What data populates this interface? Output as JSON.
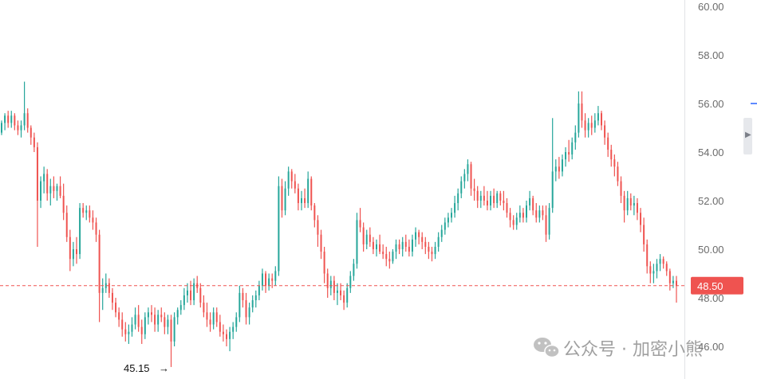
{
  "chart_data": {
    "type": "candlestick",
    "title": "",
    "xlabel": "",
    "ylabel": "",
    "ylim": [
      45.0,
      60.4
    ],
    "yticks": [
      "60.00",
      "58.00",
      "56.00",
      "54.00",
      "52.00",
      "50.00",
      "48.00",
      "46.00"
    ],
    "y_axis_side": "right",
    "grid": false,
    "up_color": "#26a69a",
    "down_color": "#ef5350",
    "current_price": {
      "value": 48.5,
      "label": "48.50",
      "color": "#ef5350"
    },
    "low_marker": {
      "value": 45.15,
      "label": "45.15",
      "arrow": "→"
    },
    "candles": [
      [
        54.8,
        55.3,
        54.7,
        55.2
      ],
      [
        55.2,
        55.6,
        54.9,
        55.5
      ],
      [
        55.5,
        55.7,
        55.0,
        55.2
      ],
      [
        55.2,
        55.7,
        55.0,
        55.5
      ],
      [
        55.5,
        55.6,
        54.9,
        55.1
      ],
      [
        55.1,
        55.3,
        54.7,
        54.9
      ],
      [
        54.9,
        55.3,
        54.6,
        55.1
      ],
      [
        55.1,
        56.9,
        54.9,
        55.6
      ],
      [
        55.6,
        55.8,
        54.8,
        55.0
      ],
      [
        55.0,
        55.1,
        54.3,
        54.6
      ],
      [
        54.6,
        54.8,
        54.0,
        54.2
      ],
      [
        54.2,
        54.4,
        50.1,
        52.0
      ],
      [
        52.0,
        53.0,
        51.7,
        52.8
      ],
      [
        52.8,
        53.4,
        52.3,
        53.1
      ],
      [
        53.1,
        53.3,
        52.0,
        52.3
      ],
      [
        52.3,
        52.9,
        51.8,
        52.6
      ],
      [
        52.6,
        53.0,
        52.1,
        52.4
      ],
      [
        52.4,
        52.7,
        52.0,
        52.6
      ],
      [
        52.6,
        53.0,
        52.1,
        52.2
      ],
      [
        52.2,
        52.7,
        51.2,
        51.5
      ],
      [
        51.5,
        51.8,
        50.3,
        50.5
      ],
      [
        50.5,
        50.8,
        49.1,
        49.6
      ],
      [
        49.6,
        50.3,
        49.3,
        50.0
      ],
      [
        50.0,
        50.5,
        49.4,
        49.8
      ],
      [
        49.8,
        51.9,
        49.6,
        51.7
      ],
      [
        51.7,
        51.9,
        51.3,
        51.5
      ],
      [
        51.5,
        51.8,
        51.2,
        51.6
      ],
      [
        51.6,
        51.8,
        51.1,
        51.3
      ],
      [
        51.3,
        51.6,
        50.8,
        51.1
      ],
      [
        51.1,
        51.3,
        50.3,
        50.6
      ],
      [
        50.6,
        50.8,
        47.0,
        48.2
      ],
      [
        48.2,
        48.8,
        47.5,
        48.4
      ],
      [
        48.4,
        49.0,
        48.2,
        48.6
      ],
      [
        48.6,
        48.8,
        48.0,
        48.2
      ],
      [
        48.2,
        48.4,
        47.5,
        47.8
      ],
      [
        47.8,
        48.0,
        47.2,
        47.4
      ],
      [
        47.4,
        47.6,
        46.8,
        47.1
      ],
      [
        47.1,
        47.4,
        46.4,
        46.7
      ],
      [
        46.7,
        47.0,
        46.2,
        46.5
      ],
      [
        46.5,
        46.9,
        46.1,
        46.6
      ],
      [
        46.6,
        47.2,
        46.4,
        46.9
      ],
      [
        46.9,
        47.6,
        46.7,
        47.3
      ],
      [
        47.3,
        47.7,
        46.6,
        46.8
      ],
      [
        46.8,
        47.1,
        46.1,
        46.5
      ],
      [
        46.5,
        47.4,
        46.3,
        47.2
      ],
      [
        47.2,
        47.6,
        46.9,
        47.4
      ],
      [
        47.4,
        47.7,
        47.0,
        47.3
      ],
      [
        47.3,
        47.6,
        46.6,
        46.9
      ],
      [
        46.9,
        47.5,
        46.6,
        47.3
      ],
      [
        47.3,
        47.6,
        47.0,
        47.2
      ],
      [
        47.2,
        47.4,
        46.5,
        46.8
      ],
      [
        46.8,
        47.3,
        46.5,
        47.1
      ],
      [
        47.1,
        47.3,
        45.15,
        46.2
      ],
      [
        46.2,
        47.4,
        46.0,
        47.2
      ],
      [
        47.2,
        47.6,
        46.9,
        47.5
      ],
      [
        47.5,
        47.9,
        47.3,
        47.7
      ],
      [
        47.7,
        48.4,
        47.5,
        48.1
      ],
      [
        48.1,
        48.6,
        47.8,
        48.3
      ],
      [
        48.3,
        48.7,
        47.7,
        47.9
      ],
      [
        47.9,
        48.8,
        47.7,
        48.6
      ],
      [
        48.6,
        48.9,
        48.2,
        48.4
      ],
      [
        48.4,
        48.6,
        47.6,
        47.8
      ],
      [
        47.8,
        48.1,
        47.2,
        47.4
      ],
      [
        47.4,
        47.8,
        46.8,
        47.1
      ],
      [
        47.1,
        47.4,
        46.6,
        46.9
      ],
      [
        46.9,
        47.6,
        46.7,
        47.4
      ],
      [
        47.4,
        47.6,
        46.8,
        47.0
      ],
      [
        47.0,
        47.3,
        46.4,
        46.6
      ],
      [
        46.6,
        46.9,
        46.2,
        46.5
      ],
      [
        46.5,
        46.7,
        46.0,
        46.3
      ],
      [
        46.3,
        46.8,
        45.8,
        46.6
      ],
      [
        46.6,
        47.0,
        46.3,
        46.8
      ],
      [
        46.8,
        47.4,
        46.6,
        47.2
      ],
      [
        47.2,
        48.5,
        47.0,
        48.2
      ],
      [
        48.2,
        48.4,
        47.6,
        47.9
      ],
      [
        47.9,
        48.2,
        46.9,
        47.2
      ],
      [
        47.2,
        47.8,
        46.9,
        47.6
      ],
      [
        47.6,
        48.1,
        47.4,
        47.9
      ],
      [
        47.9,
        48.3,
        47.6,
        48.1
      ],
      [
        48.1,
        48.7,
        47.9,
        48.5
      ],
      [
        48.5,
        49.2,
        48.3,
        49.0
      ],
      [
        49.0,
        49.1,
        48.2,
        48.5
      ],
      [
        48.5,
        49.0,
        48.3,
        48.8
      ],
      [
        48.8,
        49.0,
        48.4,
        48.7
      ],
      [
        48.7,
        49.3,
        48.5,
        49.1
      ],
      [
        49.1,
        53.0,
        48.9,
        52.6
      ],
      [
        52.6,
        52.9,
        51.3,
        51.6
      ],
      [
        51.6,
        52.8,
        51.4,
        52.5
      ],
      [
        52.5,
        53.4,
        52.2,
        53.2
      ],
      [
        53.2,
        53.3,
        52.5,
        52.8
      ],
      [
        52.8,
        53.1,
        52.3,
        52.5
      ],
      [
        52.5,
        52.7,
        51.6,
        51.9
      ],
      [
        51.9,
        52.4,
        51.6,
        52.1
      ],
      [
        52.1,
        52.5,
        51.7,
        51.9
      ],
      [
        51.9,
        53.2,
        51.7,
        52.9
      ],
      [
        52.9,
        53.0,
        51.6,
        51.8
      ],
      [
        51.8,
        51.9,
        50.9,
        51.2
      ],
      [
        51.2,
        51.4,
        50.1,
        50.6
      ],
      [
        50.6,
        50.8,
        49.6,
        49.9
      ],
      [
        49.9,
        50.1,
        48.6,
        49.0
      ],
      [
        49.0,
        49.2,
        48.0,
        48.4
      ],
      [
        48.4,
        48.9,
        48.1,
        48.7
      ],
      [
        48.7,
        48.9,
        47.9,
        48.2
      ],
      [
        48.2,
        48.6,
        47.7,
        48.3
      ],
      [
        48.3,
        48.6,
        47.9,
        48.1
      ],
      [
        48.1,
        48.3,
        47.5,
        47.8
      ],
      [
        47.8,
        48.6,
        47.6,
        48.4
      ],
      [
        48.4,
        49.1,
        48.2,
        48.9
      ],
      [
        48.9,
        49.6,
        48.7,
        49.4
      ],
      [
        49.4,
        51.5,
        49.2,
        51.2
      ],
      [
        51.2,
        51.7,
        50.7,
        50.9
      ],
      [
        50.9,
        51.1,
        49.9,
        50.2
      ],
      [
        50.2,
        50.8,
        50.0,
        50.6
      ],
      [
        50.6,
        50.9,
        50.1,
        50.3
      ],
      [
        50.3,
        50.5,
        49.8,
        50.0
      ],
      [
        50.0,
        50.4,
        49.7,
        50.2
      ],
      [
        50.2,
        50.6,
        49.8,
        49.9
      ],
      [
        49.9,
        50.2,
        49.6,
        49.8
      ],
      [
        49.8,
        50.1,
        49.3,
        49.6
      ],
      [
        49.6,
        49.9,
        49.2,
        49.5
      ],
      [
        49.5,
        50.0,
        49.4,
        49.9
      ],
      [
        49.9,
        50.4,
        49.6,
        50.2
      ],
      [
        50.2,
        50.4,
        49.8,
        50.0
      ],
      [
        50.0,
        50.5,
        49.7,
        50.3
      ],
      [
        50.3,
        50.6,
        49.9,
        50.1
      ],
      [
        50.1,
        50.4,
        49.7,
        49.9
      ],
      [
        49.9,
        50.6,
        49.7,
        50.4
      ],
      [
        50.4,
        50.9,
        50.1,
        50.7
      ],
      [
        50.7,
        50.8,
        50.2,
        50.5
      ],
      [
        50.5,
        50.7,
        50.0,
        50.3
      ],
      [
        50.3,
        50.5,
        49.8,
        50.1
      ],
      [
        50.1,
        50.3,
        49.6,
        49.9
      ],
      [
        49.9,
        50.1,
        49.5,
        49.8
      ],
      [
        49.8,
        50.3,
        49.6,
        50.1
      ],
      [
        50.1,
        50.7,
        49.9,
        50.5
      ],
      [
        50.5,
        51.0,
        50.3,
        50.8
      ],
      [
        50.8,
        51.3,
        50.6,
        51.1
      ],
      [
        51.1,
        51.5,
        50.9,
        51.3
      ],
      [
        51.3,
        51.7,
        51.1,
        51.5
      ],
      [
        51.5,
        52.2,
        51.3,
        51.9
      ],
      [
        51.9,
        52.5,
        51.6,
        52.3
      ],
      [
        52.3,
        53.0,
        52.1,
        52.8
      ],
      [
        52.8,
        53.3,
        52.5,
        53.1
      ],
      [
        53.1,
        53.7,
        52.8,
        53.5
      ],
      [
        53.5,
        53.6,
        52.2,
        52.5
      ],
      [
        52.5,
        52.9,
        52.0,
        52.4
      ],
      [
        52.4,
        52.6,
        51.7,
        52.0
      ],
      [
        52.0,
        52.4,
        51.7,
        52.2
      ],
      [
        52.2,
        52.6,
        51.8,
        52.0
      ],
      [
        52.0,
        52.4,
        51.6,
        51.8
      ],
      [
        51.8,
        52.4,
        51.6,
        52.2
      ],
      [
        52.2,
        52.5,
        51.7,
        51.9
      ],
      [
        51.9,
        52.4,
        51.7,
        52.3
      ],
      [
        52.3,
        52.4,
        51.8,
        52.0
      ],
      [
        52.0,
        52.4,
        51.6,
        51.9
      ],
      [
        51.9,
        52.1,
        51.3,
        51.5
      ],
      [
        51.5,
        51.7,
        50.9,
        51.2
      ],
      [
        51.2,
        51.4,
        50.8,
        51.0
      ],
      [
        51.0,
        51.5,
        50.8,
        51.3
      ],
      [
        51.3,
        51.8,
        51.1,
        51.5
      ],
      [
        51.5,
        51.7,
        51.1,
        51.3
      ],
      [
        51.3,
        52.0,
        51.1,
        51.8
      ],
      [
        51.8,
        52.4,
        51.6,
        52.1
      ],
      [
        52.1,
        52.2,
        51.4,
        51.6
      ],
      [
        51.6,
        51.9,
        51.1,
        51.3
      ],
      [
        51.3,
        51.8,
        51.1,
        51.6
      ],
      [
        51.6,
        51.8,
        51.2,
        51.4
      ],
      [
        51.4,
        51.8,
        50.3,
        50.6
      ],
      [
        50.6,
        51.9,
        50.4,
        51.7
      ],
      [
        51.7,
        55.4,
        51.5,
        53.2
      ],
      [
        53.2,
        53.7,
        52.8,
        53.4
      ],
      [
        53.4,
        53.8,
        52.9,
        53.2
      ],
      [
        53.2,
        53.9,
        53.0,
        53.7
      ],
      [
        53.7,
        54.2,
        53.4,
        54.0
      ],
      [
        54.0,
        54.5,
        53.6,
        53.9
      ],
      [
        53.9,
        54.6,
        53.7,
        54.4
      ],
      [
        54.4,
        55.1,
        54.1,
        54.8
      ],
      [
        54.8,
        56.5,
        54.6,
        56.0
      ],
      [
        56.0,
        56.5,
        55.0,
        55.3
      ],
      [
        55.3,
        55.6,
        54.6,
        54.9
      ],
      [
        54.9,
        55.4,
        54.6,
        55.2
      ],
      [
        55.2,
        55.5,
        54.7,
        55.0
      ],
      [
        55.0,
        55.6,
        54.8,
        55.3
      ],
      [
        55.3,
        55.9,
        55.1,
        55.6
      ],
      [
        55.6,
        55.7,
        54.9,
        55.1
      ],
      [
        55.1,
        55.3,
        54.3,
        54.6
      ],
      [
        54.6,
        54.8,
        53.8,
        54.1
      ],
      [
        54.1,
        54.3,
        53.4,
        53.7
      ],
      [
        53.7,
        53.9,
        53.0,
        53.4
      ],
      [
        53.4,
        53.6,
        52.6,
        52.8
      ],
      [
        52.8,
        53.0,
        51.9,
        52.2
      ],
      [
        52.2,
        52.4,
        51.1,
        51.6
      ],
      [
        51.6,
        52.4,
        51.4,
        52.1
      ],
      [
        52.1,
        52.3,
        51.6,
        51.8
      ],
      [
        51.8,
        52.2,
        51.4,
        51.9
      ],
      [
        51.9,
        52.1,
        51.2,
        51.5
      ],
      [
        51.5,
        51.7,
        50.7,
        51.0
      ],
      [
        51.0,
        51.3,
        49.9,
        50.2
      ],
      [
        50.2,
        50.4,
        49.0,
        49.3
      ],
      [
        49.3,
        49.5,
        48.6,
        49.0
      ],
      [
        49.0,
        49.4,
        48.6,
        49.1
      ],
      [
        49.1,
        49.6,
        48.8,
        49.4
      ],
      [
        49.4,
        49.8,
        49.1,
        49.6
      ],
      [
        49.6,
        49.7,
        49.2,
        49.4
      ],
      [
        49.4,
        49.5,
        48.9,
        49.1
      ],
      [
        49.1,
        49.2,
        48.3,
        48.6
      ],
      [
        48.6,
        48.9,
        48.4,
        48.7
      ],
      [
        48.7,
        48.9,
        47.8,
        48.5
      ]
    ]
  },
  "watermark": {
    "text": "公众号 · 加密小熊",
    "icon": "wechat-icon"
  },
  "side_handle": {
    "icon": "chevron-right-icon"
  }
}
